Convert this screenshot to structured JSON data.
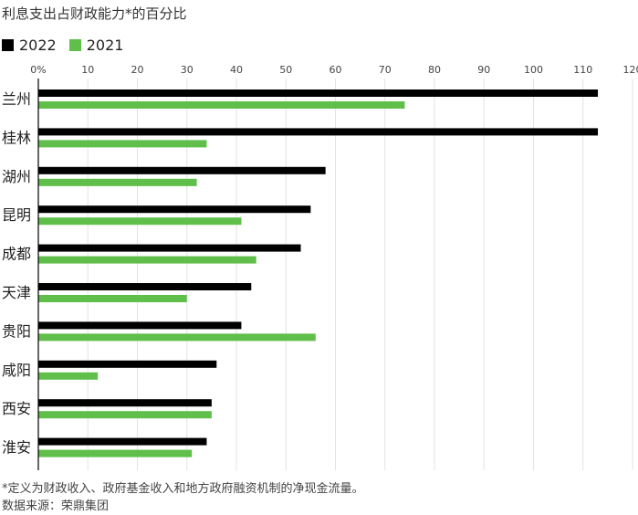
{
  "chart_data": {
    "type": "bar",
    "orientation": "horizontal",
    "title": "利息支出占财政能力*的百分比",
    "categories": [
      "兰州",
      "桂林",
      "湖州",
      "昆明",
      "成都",
      "天津",
      "贵阳",
      "咸阳",
      "西安",
      "淮安"
    ],
    "series": [
      {
        "name": "2022",
        "color": "#000000",
        "values": [
          113,
          113,
          58,
          55,
          53,
          43,
          41,
          36,
          35,
          34
        ]
      },
      {
        "name": "2021",
        "color": "#5fbf4a",
        "values": [
          74,
          34,
          32,
          41,
          44,
          30,
          56,
          12,
          35,
          31
        ]
      }
    ],
    "xlim": [
      0,
      120
    ],
    "ticks": [
      "0%",
      "10",
      "20",
      "30",
      "40",
      "50",
      "60",
      "70",
      "80",
      "90",
      "100",
      "110",
      "120"
    ],
    "grid": true,
    "legend_position": "top-left",
    "footnote": "*定义为财政收入、政府基金收入和地方政府融资机制的净现金流量。",
    "source": "数据来源：荣鼎集团"
  }
}
